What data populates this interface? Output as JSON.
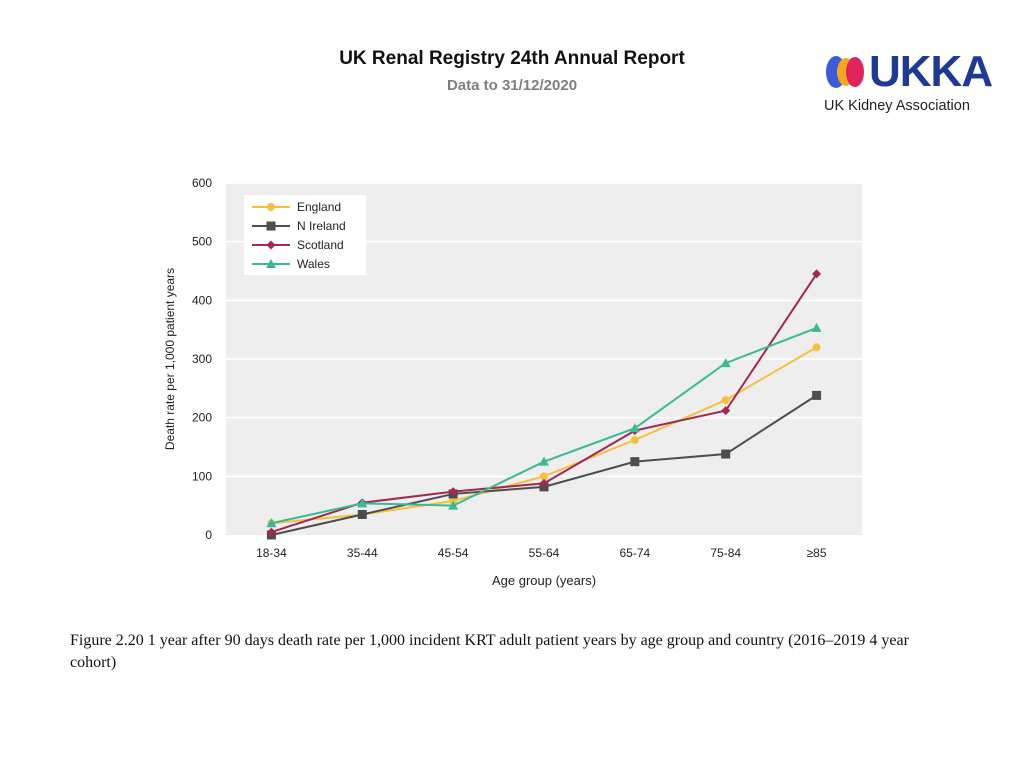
{
  "header": {
    "title": "UK Renal Registry 24th Annual Report",
    "subtitle": "Data to 31/12/2020"
  },
  "logo": {
    "wordmark": "UKKA",
    "tagline": "UK Kidney Association",
    "colors": {
      "blue": "#3b5bd9",
      "orange": "#f5a623",
      "red": "#e0245e",
      "navy": "#1f3a93"
    }
  },
  "caption": "Figure 2.20 1 year after 90 days death rate per 1,000 incident KRT adult patient years by age group and country (2016–2019 4 year cohort)",
  "chart_data": {
    "type": "line",
    "title": "",
    "xlabel": "Age group (years)",
    "ylabel": "Death rate per 1,000 patient years",
    "categories": [
      "18-34",
      "35-44",
      "45-54",
      "55-64",
      "65-74",
      "75-84",
      "≥85"
    ],
    "ylim": [
      0,
      600
    ],
    "yticks": [
      0,
      100,
      200,
      300,
      400,
      500,
      600
    ],
    "grid": true,
    "legend_position": "top-left",
    "series": [
      {
        "name": "England",
        "color": "#f6bf3f",
        "marker": "circle",
        "values": [
          20,
          35,
          58,
          100,
          162,
          230,
          320
        ]
      },
      {
        "name": "N Ireland",
        "color": "#4d4d4d",
        "marker": "square",
        "values": [
          0,
          35,
          70,
          82,
          125,
          138,
          238
        ]
      },
      {
        "name": "Scotland",
        "color": "#9e2a55",
        "marker": "diamond",
        "values": [
          5,
          55,
          74,
          88,
          178,
          212,
          445
        ]
      },
      {
        "name": "Wales",
        "color": "#3cb894",
        "marker": "triangle",
        "values": [
          20,
          54,
          50,
          125,
          182,
          293,
          353
        ]
      }
    ]
  }
}
